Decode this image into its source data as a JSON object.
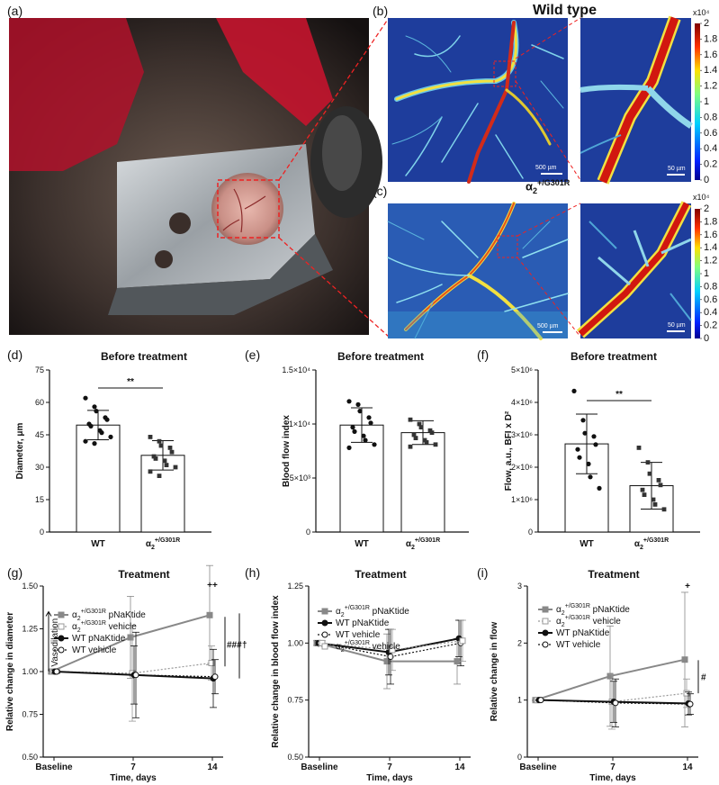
{
  "panel_labels": [
    "(a)",
    "(b)",
    "(c)",
    "(d)",
    "(e)",
    "(f)",
    "(g)",
    "(h)",
    "(i)"
  ],
  "top": {
    "wild_type_label": "Wild type",
    "mutant_label": "α2+/G301R",
    "scale_large": "500 µm",
    "scale_small": "50 µm",
    "colorbar": {
      "exponent": "x10⁴",
      "ticks": [
        "2",
        "1.8",
        "1.6",
        "1.4",
        "1.2",
        "1",
        "0.8",
        "0.6",
        "0.4",
        "0.2",
        "0"
      ]
    }
  },
  "colors": {
    "wt": "#000000",
    "mutant": "#808080",
    "photo_bg": "#3a302c",
    "tissue": "#d9a8a0",
    "angio_bg": "#1f3c9a"
  },
  "chart_data": [
    {
      "panel": "(d)",
      "type": "bar",
      "title": "Before treatment",
      "ylabel": "Diameter, μm",
      "categories": [
        "WT",
        "α2+/G301R"
      ],
      "values": [
        49.5,
        35.5
      ],
      "sd": [
        6.8,
        6.8
      ],
      "ylim": [
        0,
        75
      ],
      "yticks": [
        "0",
        "15",
        "30",
        "45",
        "60",
        "75"
      ],
      "points": [
        [
          62,
          58,
          56,
          53,
          52,
          50,
          49,
          47,
          46,
          44,
          42,
          41
        ],
        [
          44,
          42,
          40,
          39,
          37,
          35,
          34,
          33,
          31,
          30,
          28,
          26
        ]
      ],
      "significance": "**"
    },
    {
      "panel": "(e)",
      "type": "bar",
      "title": "Before treatment",
      "ylabel": "Blood flow index",
      "categories": [
        "WT",
        "α2+/G301R"
      ],
      "values": [
        9900,
        9200
      ],
      "sd": [
        1600,
        1100
      ],
      "ylim": [
        0,
        15000
      ],
      "yticks": [
        "0",
        "5×10³",
        "1×10⁴",
        "1.5×10⁴"
      ],
      "points": [
        [
          12100,
          11800,
          11200,
          10600,
          10100,
          9700,
          9300,
          8900,
          8500,
          8100,
          7800
        ],
        [
          10400,
          10000,
          9700,
          9400,
          9200,
          9000,
          8700,
          8500,
          8300,
          8100,
          7900
        ]
      ],
      "significance": ""
    },
    {
      "panel": "(f)",
      "type": "bar",
      "title": "Before treatment",
      "ylabel": "Flow, a.u., BFI x D²",
      "categories": [
        "WT",
        "α2+/G301R"
      ],
      "values": [
        2720000,
        1430000
      ],
      "sd": [
        920000,
        720000
      ],
      "ylim": [
        0,
        5000000
      ],
      "yticks": [
        "0",
        "1×10⁶",
        "2×10⁶",
        "3×10⁶",
        "4×10⁶",
        "5×10⁶"
      ],
      "points": [
        [
          4350000,
          3450000,
          3050000,
          2950000,
          2700000,
          2550000,
          2300000,
          2100000,
          1700000,
          1350000
        ],
        [
          2600000,
          2150000,
          1800000,
          1600000,
          1450000,
          1300000,
          1150000,
          1000000,
          850000,
          700000
        ]
      ],
      "significance": "**"
    },
    {
      "panel": "(g)",
      "type": "line",
      "title": "Treatment",
      "xlabel": "Time, days",
      "ylabel": "Relative change in diameter",
      "categories": [
        "Baseline",
        "7",
        "14"
      ],
      "ylim": [
        0.5,
        1.5
      ],
      "yticks": [
        "0.50",
        "0.75",
        "1.00",
        "1.25",
        "1.50"
      ],
      "series": [
        {
          "name": "α2+/G301R pNaKtide",
          "values": [
            1.0,
            1.2,
            1.33
          ],
          "err": [
            0.01,
            0.24,
            0.29
          ],
          "style": "grey-square-solid"
        },
        {
          "name": "α2+/G301R vehicle",
          "values": [
            1.0,
            0.99,
            1.05
          ],
          "err": [
            0.01,
            0.28,
            0.1
          ],
          "style": "grey-open-square-dotted"
        },
        {
          "name": "WT pNaKtide",
          "values": [
            1.0,
            0.98,
            0.96
          ],
          "err": [
            0.01,
            0.17,
            0.17
          ],
          "style": "black-dot-solid"
        },
        {
          "name": "WT vehicle",
          "values": [
            1.0,
            0.98,
            0.97
          ],
          "err": [
            0.01,
            0.25,
            0.1
          ],
          "style": "black-open-dot-dotted"
        }
      ],
      "annotations": {
        "vasodilation": "Vasodilation",
        "plus": "++",
        "hash": "###",
        "dagger": "†"
      }
    },
    {
      "panel": "(h)",
      "type": "line",
      "title": "Treatment",
      "xlabel": "Time, days",
      "ylabel": "Relative change in blood flow index",
      "categories": [
        "Baseline",
        "7",
        "14"
      ],
      "ylim": [
        0.5,
        1.25
      ],
      "yticks": [
        "0.50",
        "0.75",
        "1.00",
        "1.25"
      ],
      "series": [
        {
          "name": "α2+/G301R pNaKtide",
          "values": [
            1.0,
            0.92,
            0.92
          ],
          "err": [
            0.01,
            0.12,
            0.1
          ],
          "style": "grey-square-solid"
        },
        {
          "name": "WT pNaKtide",
          "values": [
            1.0,
            0.96,
            1.02
          ],
          "err": [
            0.01,
            0.1,
            0.08
          ],
          "style": "black-dot-solid"
        },
        {
          "name": "WT vehicle",
          "values": [
            1.0,
            0.94,
            1.0
          ],
          "err": [
            0.01,
            0.12,
            0.1
          ],
          "style": "black-open-dot-dotted"
        },
        {
          "name": "α2+/G301R vehicle",
          "values": [
            1.0,
            0.97,
            1.01
          ],
          "err": [
            0.01,
            0.09,
            0.09
          ],
          "style": "grey-open-square-dotted"
        }
      ]
    },
    {
      "panel": "(i)",
      "type": "line",
      "title": "Treatment",
      "xlabel": "Time, days",
      "ylabel": "Relative change in flow",
      "categories": [
        "Baseline",
        "7",
        "14"
      ],
      "ylim": [
        0,
        3
      ],
      "yticks": [
        "0",
        "1",
        "2",
        "3"
      ],
      "series": [
        {
          "name": "α2+/G301R pNaKtide",
          "values": [
            1.0,
            1.42,
            1.71
          ],
          "err": [
            0.01,
            0.88,
            1.18
          ],
          "style": "grey-square-solid"
        },
        {
          "name": "α2+/G301R vehicle",
          "values": [
            1.0,
            0.97,
            1.12
          ],
          "err": [
            0.01,
            0.48,
            0.25
          ],
          "style": "grey-open-square-dotted"
        },
        {
          "name": "WT pNaKtide",
          "values": [
            1.0,
            0.97,
            0.94
          ],
          "err": [
            0.01,
            0.36,
            0.2
          ],
          "style": "black-dot-solid"
        },
        {
          "name": "WT vehicle",
          "values": [
            1.0,
            0.95,
            0.93
          ],
          "err": [
            0.01,
            0.42,
            0.18
          ],
          "style": "black-open-dot-dotted"
        }
      ],
      "annotations": {
        "plus": "+",
        "hash": "#"
      }
    }
  ]
}
